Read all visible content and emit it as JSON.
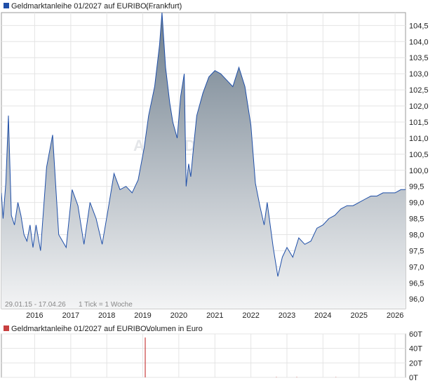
{
  "price_chart": {
    "legend_color": "#1f4fa8",
    "title": "Geldmarktanleihe 01/2027 auf EURIBO...",
    "exchange": "(Frankfurt)",
    "watermark": "ARIVA.DE Stock",
    "footer_range": "29.01.15 - 17.04.26",
    "footer_tick": "1 Tick = 1 Woche"
  },
  "volume_chart": {
    "legend_color": "#c84040",
    "title": "Geldmarktanleihe 01/2027 auf EURIBO...",
    "subtitle": "Volumen in Euro"
  },
  "chart_data": [
    {
      "type": "area",
      "title": "Geldmarktanleihe 01/2027 auf EURIBO... (Frankfurt)",
      "x_range": [
        "2015-01-29",
        "2026-04-17"
      ],
      "x_ticks": [
        "2016",
        "2017",
        "2018",
        "2019",
        "2020",
        "2021",
        "2022",
        "2023",
        "2024",
        "2025",
        "2026"
      ],
      "y_ticks": [
        "104,5",
        "104,0",
        "103,5",
        "103,0",
        "102,5",
        "102,0",
        "101,5",
        "101,0",
        "100,5",
        "100,0",
        "99,5",
        "99,0",
        "98,5",
        "98,0",
        "97,5",
        "97,0",
        "96,5",
        "96,0"
      ],
      "ylim": [
        95.7,
        104.9
      ],
      "grid": true,
      "series": [
        {
          "color": "#1f4fa8",
          "points": [
            [
              "2015-01-29",
              99.3
            ],
            [
              "2015-02-15",
              98.5
            ],
            [
              "2015-03-15",
              99.6
            ],
            [
              "2015-04-10",
              101.7
            ],
            [
              "2015-05-10",
              98.6
            ],
            [
              "2015-06-10",
              98.3
            ],
            [
              "2015-07-15",
              99.0
            ],
            [
              "2015-08-15",
              98.6
            ],
            [
              "2015-09-15",
              98.0
            ],
            [
              "2015-10-15",
              97.8
            ],
            [
              "2015-11-15",
              98.3
            ],
            [
              "2015-12-15",
              97.6
            ],
            [
              "2016-01-15",
              98.3
            ],
            [
              "2016-03-01",
              97.5
            ],
            [
              "2016-05-01",
              100.1
            ],
            [
              "2016-07-01",
              101.1
            ],
            [
              "2016-09-01",
              98.0
            ],
            [
              "2016-11-15",
              97.6
            ],
            [
              "2017-01-15",
              99.4
            ],
            [
              "2017-03-15",
              98.9
            ],
            [
              "2017-05-15",
              97.7
            ],
            [
              "2017-07-15",
              99.0
            ],
            [
              "2017-09-15",
              98.5
            ],
            [
              "2017-11-15",
              97.7
            ],
            [
              "2018-01-15",
              98.8
            ],
            [
              "2018-03-15",
              99.9
            ],
            [
              "2018-05-15",
              99.4
            ],
            [
              "2018-07-15",
              99.5
            ],
            [
              "2018-09-15",
              99.3
            ],
            [
              "2018-11-15",
              99.7
            ],
            [
              "2019-01-15",
              100.7
            ],
            [
              "2019-03-01",
              101.7
            ],
            [
              "2019-05-01",
              102.6
            ],
            [
              "2019-06-20",
              103.9
            ],
            [
              "2019-07-15",
              104.9
            ],
            [
              "2019-08-20",
              103.2
            ],
            [
              "2019-10-01",
              102.1
            ],
            [
              "2019-11-01",
              101.5
            ],
            [
              "2019-12-15",
              101.0
            ],
            [
              "2020-01-20",
              102.3
            ],
            [
              "2020-02-25",
              103.0
            ],
            [
              "2020-03-15",
              99.5
            ],
            [
              "2020-04-10",
              100.2
            ],
            [
              "2020-05-01",
              99.8
            ],
            [
              "2020-06-01",
              100.8
            ],
            [
              "2020-07-01",
              101.7
            ],
            [
              "2020-09-01",
              102.4
            ],
            [
              "2020-11-01",
              102.9
            ],
            [
              "2021-01-01",
              103.1
            ],
            [
              "2021-03-01",
              103.0
            ],
            [
              "2021-05-01",
              102.8
            ],
            [
              "2021-07-01",
              102.6
            ],
            [
              "2021-09-01",
              103.2
            ],
            [
              "2021-11-01",
              102.6
            ],
            [
              "2022-01-01",
              101.4
            ],
            [
              "2022-02-15",
              99.6
            ],
            [
              "2022-04-01",
              98.9
            ],
            [
              "2022-05-15",
              98.3
            ],
            [
              "2022-06-15",
              99.0
            ],
            [
              "2022-08-15",
              97.6
            ],
            [
              "2022-10-01",
              96.7
            ],
            [
              "2022-11-15",
              97.3
            ],
            [
              "2023-01-01",
              97.6
            ],
            [
              "2023-03-01",
              97.3
            ],
            [
              "2023-05-01",
              97.9
            ],
            [
              "2023-07-01",
              97.7
            ],
            [
              "2023-09-01",
              97.8
            ],
            [
              "2023-11-01",
              98.2
            ],
            [
              "2024-01-01",
              98.3
            ],
            [
              "2024-03-01",
              98.5
            ],
            [
              "2024-05-01",
              98.6
            ],
            [
              "2024-07-01",
              98.8
            ],
            [
              "2024-09-01",
              98.9
            ],
            [
              "2024-11-01",
              98.9
            ],
            [
              "2025-01-01",
              99.0
            ],
            [
              "2025-03-01",
              99.1
            ],
            [
              "2025-05-01",
              99.2
            ],
            [
              "2025-07-01",
              99.2
            ],
            [
              "2025-09-01",
              99.3
            ],
            [
              "2025-11-01",
              99.3
            ],
            [
              "2026-01-01",
              99.3
            ],
            [
              "2026-03-01",
              99.4
            ],
            [
              "2026-04-17",
              99.4
            ]
          ]
        }
      ]
    },
    {
      "type": "bar",
      "title": "Geldmarktanleihe 01/2027 auf EURIBO... Volumen in Euro",
      "y_ticks": [
        "60T",
        "40T",
        "20T",
        "0T"
      ],
      "ylim": [
        0,
        60
      ],
      "grid": true,
      "series": [
        {
          "color": "#c84040",
          "points": [
            [
              "2019-01-25",
              55
            ],
            [
              "2022-09-15",
              0.5
            ],
            [
              "2023-04-10",
              0.5
            ],
            [
              "2024-05-10",
              0.4
            ]
          ]
        }
      ]
    }
  ]
}
